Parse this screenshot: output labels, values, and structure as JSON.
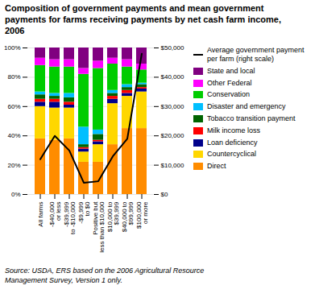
{
  "chart_data": {
    "type": "bar",
    "stacked": true,
    "title": "Composition of government payments and mean government\npayments for farms receiving payments by net cash farm income,\n2006",
    "source": "Source: USDA, ERS based on the 2006 Agricultural Resource\nManagement Survey, Version 1 only.",
    "categories": [
      "All farms",
      "-$40,000\nor less",
      "-$39,999\nto -$10,000",
      "-$9,999\nto $0",
      "Positive but\nless than $10,000",
      "$10,000 to\n$39,999",
      "$40,000 to\n$99,999",
      "$100,000\nor more"
    ],
    "series": [
      {
        "name": "Direct",
        "color": "#FF8C00",
        "values": [
          38,
          37,
          38,
          22,
          22,
          34,
          45,
          45
        ]
      },
      {
        "name": "Countercyclical",
        "color": "#FFD700",
        "values": [
          22,
          22,
          21,
          7,
          12,
          28,
          22,
          25
        ]
      },
      {
        "name": "Loan deficiency",
        "color": "#00008B",
        "values": [
          3,
          4,
          2,
          2,
          2,
          3,
          2,
          2
        ]
      },
      {
        "name": "Milk income loss",
        "color": "#FF0000",
        "values": [
          2,
          2,
          2,
          1,
          1,
          2,
          2,
          1
        ]
      },
      {
        "name": "Tobacco transition payment",
        "color": "#006400",
        "values": [
          3,
          2,
          3,
          2,
          4,
          2,
          2,
          2
        ]
      },
      {
        "name": "Disaster and emergency",
        "color": "#00BFFF",
        "values": [
          2,
          2,
          3,
          12,
          3,
          2,
          2,
          1
        ]
      },
      {
        "name": "Conservation",
        "color": "#00CC00",
        "values": [
          18,
          18,
          18,
          36,
          42,
          18,
          12,
          9
        ]
      },
      {
        "name": "Other Federal",
        "color": "#FF00FF",
        "values": [
          5,
          5,
          5,
          4,
          5,
          4,
          5,
          4
        ]
      },
      {
        "name": "State and local",
        "color": "#800080",
        "values": [
          7,
          8,
          8,
          14,
          9,
          7,
          8,
          11
        ]
      },
      {
        "name": "Average government payment\nper farm (right scale)",
        "type": "line",
        "axis": "y2",
        "color": "#000000",
        "values": [
          12000,
          20000,
          15000,
          4000,
          4500,
          13000,
          19000,
          48000
        ]
      }
    ],
    "ylim": [
      0,
      100
    ],
    "yticks": [
      {
        "value": 0,
        "label": "0%"
      },
      {
        "value": 20,
        "label": "20%"
      },
      {
        "value": 40,
        "label": "40%"
      },
      {
        "value": 60,
        "label": "60%"
      },
      {
        "value": 80,
        "label": "80%"
      },
      {
        "value": 100,
        "label": "100%"
      }
    ],
    "y2lim": [
      0,
      50000
    ],
    "y2ticks": [
      {
        "value": 0,
        "label": "$0"
      },
      {
        "value": 10000,
        "label": "$10,000"
      },
      {
        "value": 20000,
        "label": "$20,000"
      },
      {
        "value": 30000,
        "label": "$30,000"
      },
      {
        "value": 40000,
        "label": "$40,000"
      },
      {
        "value": 50000,
        "label": "$50,000"
      }
    ],
    "grid": true,
    "legend": "right"
  }
}
